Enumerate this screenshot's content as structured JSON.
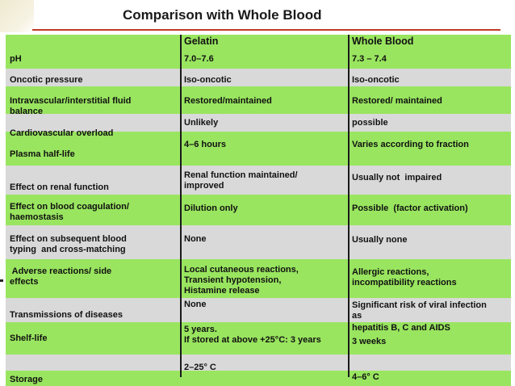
{
  "title": "Comparison with Whole Blood",
  "headers": {
    "property": "",
    "gelatin": "Gelatin",
    "whole_blood": "Whole Blood"
  },
  "rows": [
    {
      "property": "pH",
      "gelatin": "7.0–7.6",
      "whole_blood": "7.3 – 7.4"
    },
    {
      "property": "Oncotic pressure",
      "gelatin": "Iso-oncotic",
      "whole_blood": "Iso-oncotic"
    },
    {
      "property": "Intravascular/interstitial fluid\nbalance",
      "gelatin": "Restored/maintained",
      "whole_blood": "Restored/ maintained"
    },
    {
      "property": "Cardiovascular overload",
      "gelatin": "Unlikely",
      "whole_blood": "possible"
    },
    {
      "property": "Plasma half-life",
      "gelatin": "4–6 hours",
      "whole_blood": "Varies according  to fraction"
    },
    {
      "property": "Effect on renal function",
      "gelatin": "Renal function maintained/\nimproved",
      "whole_blood": "Usually not  impaired"
    },
    {
      "property": "Effect on blood coagulation/\nhaemostasis",
      "gelatin": "Dilution only",
      "whole_blood": "Possible  (factor activation)"
    },
    {
      "property": "Effect on subsequent blood\ntyping  and cross-matching",
      "gelatin": "None",
      "whole_blood": "Usually none"
    },
    {
      "property": " Adverse reactions/ side\neffects",
      "gelatin": "Local cutaneous reactions,\nTransient hypotension,\nHistamine release",
      "whole_blood": "Allergic reactions,\nincompatibility reactions"
    },
    {
      "property": "Transmissions of diseases",
      "gelatin": "None",
      "whole_blood": "Significant risk of viral infection\nas"
    },
    {
      "property": "Shelf-life",
      "gelatin": "5 years.\nIf stored at above +25°C: 3 years",
      "whole_blood": "hepatitis B, C and AIDS\n3 weeks"
    },
    {
      "property": "Storage",
      "gelatin": "2–25° C",
      "whole_blood": "4–6° C"
    }
  ],
  "colors": {
    "green_band": "#99e55f",
    "gray_band": "#d9d9d9",
    "title_rule": "#c0392b"
  }
}
